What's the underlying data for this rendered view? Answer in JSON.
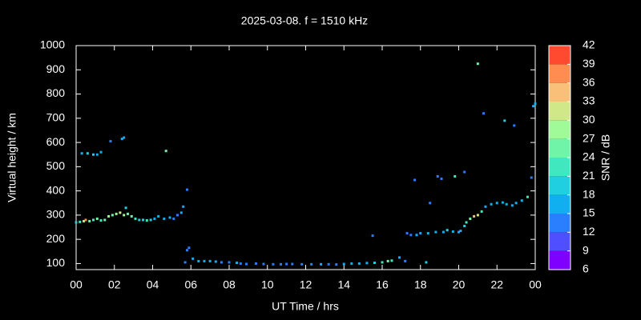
{
  "chart_data": {
    "type": "scatter",
    "title": "2025-03-08. f = 1510 kHz",
    "xlabel": "UT Time / hrs",
    "ylabel": "Virtual height / km",
    "background": "#000000",
    "frame_color": "#ffffff",
    "x": [
      0.0,
      0.2,
      0.4,
      0.5,
      0.7,
      0.9,
      1.1,
      1.3,
      1.5,
      1.7,
      1.9,
      2.1,
      2.3,
      2.5,
      2.7,
      2.9,
      3.1,
      3.3,
      3.5,
      3.7,
      3.9,
      4.1,
      4.3,
      4.6,
      4.9,
      5.1,
      5.3,
      5.5,
      5.6,
      0.3,
      0.6,
      0.9,
      1.1,
      1.3,
      1.8,
      2.4,
      2.5,
      2.6,
      4.7,
      5.8,
      5.8,
      5.9,
      5.7,
      6.1,
      6.4,
      6.7,
      7.0,
      7.3,
      7.6,
      8.0,
      8.4,
      8.6,
      8.9,
      9.4,
      9.8,
      10.3,
      10.7,
      11.0,
      11.3,
      11.8,
      12.3,
      12.8,
      13.2,
      13.6,
      14.0,
      14.4,
      14.8,
      15.2,
      15.6,
      16.0,
      16.3,
      16.5,
      16.9,
      17.2,
      15.5,
      17.3,
      17.5,
      17.8,
      18.0,
      18.4,
      18.8,
      19.2,
      19.4,
      19.7,
      20.0,
      20.1,
      20.3,
      20.4,
      20.6,
      20.8,
      21.0,
      21.2,
      21.4,
      21.7,
      22.0,
      22.3,
      22.5,
      22.8,
      23.0,
      23.3,
      23.6,
      23.8,
      24.0,
      17.7,
      18.5,
      18.9,
      19.1,
      18.3,
      19.8,
      20.3,
      21.0,
      21.3,
      22.4,
      22.9,
      23.9
    ],
    "y": [
      270,
      272,
      275,
      280,
      275,
      280,
      285,
      278,
      280,
      295,
      300,
      305,
      310,
      300,
      305,
      295,
      285,
      280,
      280,
      278,
      280,
      285,
      295,
      285,
      290,
      285,
      300,
      310,
      335,
      555,
      555,
      550,
      550,
      560,
      605,
      615,
      620,
      330,
      565,
      405,
      155,
      165,
      105,
      120,
      110,
      110,
      110,
      108,
      105,
      105,
      103,
      100,
      98,
      100,
      98,
      97,
      97,
      98,
      98,
      97,
      97,
      97,
      97,
      96,
      98,
      100,
      100,
      102,
      103,
      105,
      110,
      112,
      125,
      110,
      215,
      225,
      218,
      218,
      225,
      225,
      230,
      230,
      238,
      232,
      230,
      235,
      255,
      270,
      285,
      295,
      300,
      315,
      335,
      345,
      350,
      352,
      345,
      340,
      350,
      360,
      375,
      455,
      760,
      445,
      350,
      460,
      450,
      105,
      460,
      478,
      925,
      720,
      690,
      670,
      750
    ],
    "snr": [
      18,
      21,
      27,
      36,
      24,
      21,
      24,
      21,
      24,
      27,
      24,
      27,
      30,
      27,
      24,
      24,
      21,
      18,
      18,
      21,
      18,
      15,
      15,
      15,
      15,
      12,
      12,
      15,
      15,
      15,
      18,
      18,
      15,
      15,
      12,
      15,
      15,
      18,
      24,
      12,
      12,
      12,
      12,
      15,
      15,
      15,
      15,
      15,
      12,
      12,
      15,
      12,
      12,
      12,
      12,
      12,
      12,
      12,
      12,
      12,
      12,
      15,
      12,
      12,
      15,
      15,
      15,
      15,
      18,
      21,
      24,
      21,
      15,
      12,
      12,
      12,
      12,
      15,
      15,
      15,
      15,
      15,
      18,
      15,
      15,
      15,
      18,
      21,
      24,
      33,
      30,
      21,
      15,
      15,
      15,
      15,
      15,
      15,
      15,
      15,
      21,
      12,
      15,
      12,
      12,
      12,
      12,
      18,
      21,
      12,
      24,
      12,
      18,
      12,
      15
    ],
    "xlim": [
      0,
      24
    ],
    "ylim": [
      75,
      1000
    ],
    "xticks": [
      {
        "value": 0,
        "label": "00"
      },
      {
        "value": 2,
        "label": "02"
      },
      {
        "value": 4,
        "label": "04"
      },
      {
        "value": 6,
        "label": "06"
      },
      {
        "value": 8,
        "label": "08"
      },
      10,
      12,
      14,
      16,
      18,
      20,
      22,
      {
        "value": 24,
        "label": "00"
      }
    ],
    "yticks": [
      100,
      200,
      300,
      400,
      500,
      600,
      700,
      800,
      900,
      1000
    ],
    "colorbar": {
      "label": "SNR / dB",
      "lim": [
        6,
        42
      ],
      "ticks": [
        6,
        9,
        12,
        15,
        18,
        21,
        24,
        27,
        30,
        33,
        36,
        39,
        42
      ],
      "colors": [
        "#8000ff",
        "#4f4fff",
        "#2a7fff",
        "#10b0f0",
        "#20d0e0",
        "#40e8c0",
        "#70f5a8",
        "#a0fa98",
        "#d0e888",
        "#f8c078",
        "#ff8c50",
        "#ff4a30"
      ]
    }
  }
}
